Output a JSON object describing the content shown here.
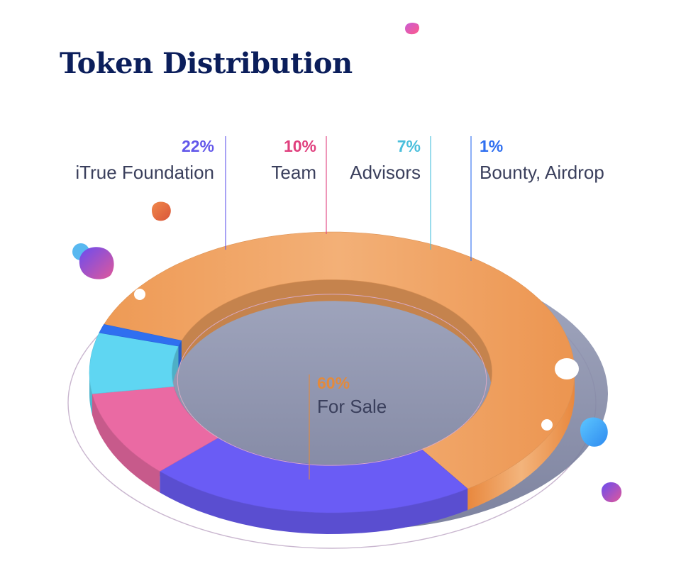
{
  "title": "Token Distribution",
  "chart_data": {
    "type": "pie",
    "title": "Token Distribution",
    "style": "3d-isometric-donut",
    "slices": [
      {
        "label": "For Sale",
        "value": 60,
        "value_label": "60%",
        "color": "#f0a05e"
      },
      {
        "label": "iTrue Foundation",
        "value": 22,
        "value_label": "22%",
        "color": "#6a5cf5"
      },
      {
        "label": "Team",
        "value": 10,
        "value_label": "10%",
        "color": "#ea6aa3"
      },
      {
        "label": "Advisors",
        "value": 7,
        "value_label": "7%",
        "color": "#5fd6f2"
      },
      {
        "label": "Bounty, Airdrop",
        "value": 1,
        "value_label": "1%",
        "color": "#2f6ff0"
      }
    ],
    "label_colors": {
      "For Sale": "#e38a3c",
      "iTrue Foundation": "#6358ea",
      "Team": "#e0407e",
      "Advisors": "#4bbfdc",
      "Bounty, Airdrop": "#2f6ff0"
    },
    "label_text_color": "#3a3f5c"
  }
}
